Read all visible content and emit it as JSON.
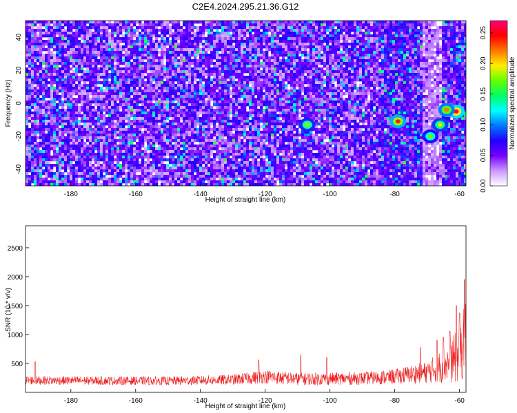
{
  "title": "C2E4.2024.295.21.36.G12",
  "chart_data": [
    {
      "type": "heatmap",
      "xlabel": "Height of straight line (km)",
      "ylabel": "Frequency (Hz)",
      "xlim": [
        -194,
        -58
      ],
      "ylim": [
        -50,
        50
      ],
      "xticks": [
        -180,
        -160,
        -140,
        -120,
        -100,
        -80,
        -60
      ],
      "yticks": [
        -40,
        -20,
        0,
        20,
        40
      ],
      "colorbar": {
        "label": "Normalized spectral amplitude",
        "range": [
          0,
          0.27
        ],
        "ticks": [
          "0.00",
          "0.05",
          "0.10",
          "0.15",
          "0.20",
          "0.25"
        ],
        "colors": [
          "#ffffff",
          "#cc99ff",
          "#7700ff",
          "#2200ff",
          "#0077ff",
          "#00ffff",
          "#00ff66",
          "#66ff00",
          "#ffee00",
          "#ff7700",
          "#ff0000",
          "#ff0077"
        ]
      },
      "hotspots": [
        {
          "x": -61,
          "y": -5,
          "amp": 0.26
        },
        {
          "x": -64,
          "y": -4,
          "amp": 0.22
        },
        {
          "x": -79,
          "y": -11,
          "amp": 0.24
        },
        {
          "x": -107,
          "y": -13,
          "amp": 0.18
        },
        {
          "x": -66,
          "y": -13,
          "amp": 0.19
        },
        {
          "x": -69,
          "y": -20,
          "amp": 0.17
        }
      ]
    },
    {
      "type": "line",
      "xlabel": "Height of straight line (km)",
      "ylabel": "SNR (10 * v/v)",
      "xlim": [
        -194,
        -58
      ],
      "ylim": [
        0,
        2880
      ],
      "xticks": [
        -180,
        -160,
        -140,
        -120,
        -100,
        -80,
        -60
      ],
      "yticks": [
        500,
        1000,
        1500,
        2000,
        2500
      ],
      "series": [
        {
          "color": "#ee2020",
          "envelope": [
            {
              "x": -194,
              "base": 200,
              "amp": 150
            },
            {
              "x": -150,
              "base": 190,
              "amp": 150
            },
            {
              "x": -130,
              "base": 210,
              "amp": 180
            },
            {
              "x": -120,
              "base": 260,
              "amp": 240
            },
            {
              "x": -110,
              "base": 220,
              "amp": 220
            },
            {
              "x": -90,
              "base": 230,
              "amp": 220
            },
            {
              "x": -80,
              "base": 260,
              "amp": 260
            },
            {
              "x": -70,
              "base": 330,
              "amp": 380
            },
            {
              "x": -64,
              "base": 450,
              "amp": 650
            },
            {
              "x": -60,
              "base": 600,
              "amp": 1000
            },
            {
              "x": -58,
              "base": 900,
              "amp": 1400
            }
          ],
          "peaks": [
            {
              "x": -191,
              "y": 530
            },
            {
              "x": -122,
              "y": 560
            },
            {
              "x": -109,
              "y": 650
            },
            {
              "x": -101,
              "y": 600
            },
            {
              "x": -72,
              "y": 780
            },
            {
              "x": -67,
              "y": 900
            },
            {
              "x": -65,
              "y": 950
            },
            {
              "x": -63,
              "y": 1060
            },
            {
              "x": -61,
              "y": 1500
            },
            {
              "x": -60,
              "y": 1370
            },
            {
              "x": -58.5,
              "y": 1950
            }
          ]
        }
      ]
    }
  ]
}
